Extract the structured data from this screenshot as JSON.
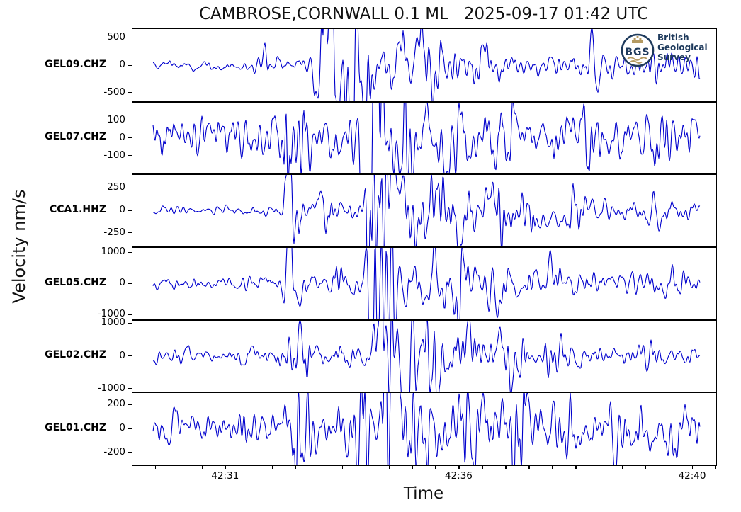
{
  "title": "CAMBROSE,CORNWALL 0.1 ML   2025-09-17 01:42 UTC",
  "ylabel": "Velocity nm/s",
  "xlabel": "Time",
  "logo": {
    "abbr": "BGS",
    "org_lines": [
      "British",
      "Geological",
      "Survey"
    ],
    "navy": "#1e3a5c",
    "gold": "#b49a62"
  },
  "chart_data": {
    "type": "line",
    "title": "CAMBROSE,CORNWALL 0.1 ML   2025-09-17 01:42 UTC",
    "xlabel": "Time",
    "ylabel": "Velocity nm/s",
    "line_color": "#0000cd",
    "grid": false,
    "x_axis": {
      "minor_tick_count": 26,
      "labels": [
        {
          "text": "42:31",
          "tick_index": 4
        },
        {
          "text": "42:36",
          "tick_index": 14
        },
        {
          "text": "42:40",
          "tick_index": 24
        }
      ]
    },
    "trace_range": {
      "start": 0.035,
      "end": 0.972
    },
    "channels": [
      {
        "name": "GEL09.CHZ",
        "ylim": [
          -650,
          650
        ],
        "yticks": [
          500,
          0,
          -500
        ],
        "seed": 11,
        "noise": [
          [
            0,
            45
          ],
          [
            0.15,
            55
          ],
          [
            0.25,
            75
          ],
          [
            0.33,
            100
          ],
          [
            0.4,
            140
          ],
          [
            0.5,
            160
          ],
          [
            0.6,
            140
          ],
          [
            0.75,
            110
          ],
          [
            0.9,
            115
          ],
          [
            1,
            120
          ]
        ],
        "bursts": [
          [
            0.23,
            10,
            160
          ],
          [
            0.33,
            8,
            1200
          ],
          [
            0.347,
            5,
            900
          ],
          [
            0.375,
            7,
            1150
          ],
          [
            0.4,
            8,
            500
          ],
          [
            0.455,
            8,
            280
          ],
          [
            0.497,
            12,
            520
          ],
          [
            0.53,
            8,
            280
          ],
          [
            0.6,
            10,
            180
          ],
          [
            0.79,
            8,
            150
          ],
          [
            0.9,
            12,
            160
          ],
          [
            0.965,
            8,
            190
          ]
        ]
      },
      {
        "name": "GEL07.CHZ",
        "ylim": [
          -200,
          200
        ],
        "yticks": [
          100,
          0,
          -100
        ],
        "seed": 22,
        "noise": [
          [
            0,
            60
          ],
          [
            0.2,
            70
          ],
          [
            0.35,
            80
          ],
          [
            0.5,
            95
          ],
          [
            0.7,
            85
          ],
          [
            1,
            75
          ]
        ],
        "bursts": [
          [
            0.262,
            6,
            200
          ],
          [
            0.285,
            8,
            120
          ],
          [
            0.4,
            7,
            300
          ],
          [
            0.415,
            6,
            340
          ],
          [
            0.43,
            6,
            240
          ],
          [
            0.47,
            10,
            120
          ],
          [
            0.55,
            12,
            80
          ],
          [
            0.64,
            10,
            90
          ],
          [
            0.78,
            10,
            80
          ],
          [
            0.9,
            8,
            90
          ]
        ]
      },
      {
        "name": "CCA1.HHZ",
        "ylim": [
          -400,
          400
        ],
        "yticks": [
          250,
          0,
          -250
        ],
        "seed": 33,
        "noise": [
          [
            0,
            25
          ],
          [
            0.2,
            32
          ],
          [
            0.3,
            45
          ],
          [
            0.42,
            60
          ],
          [
            0.52,
            120
          ],
          [
            0.7,
            90
          ],
          [
            0.85,
            70
          ],
          [
            1,
            60
          ]
        ],
        "bursts": [
          [
            0.268,
            4,
            700
          ],
          [
            0.283,
            6,
            240
          ],
          [
            0.33,
            8,
            120
          ],
          [
            0.405,
            5,
            760
          ],
          [
            0.42,
            6,
            700
          ],
          [
            0.44,
            8,
            360
          ],
          [
            0.475,
            10,
            260
          ],
          [
            0.52,
            10,
            240
          ],
          [
            0.565,
            10,
            220
          ],
          [
            0.63,
            10,
            200
          ],
          [
            0.685,
            8,
            180
          ],
          [
            0.76,
            8,
            100
          ],
          [
            0.9,
            10,
            80
          ]
        ]
      },
      {
        "name": "GEL05.CHZ",
        "ylim": [
          -1150,
          1150
        ],
        "yticks": [
          1000,
          0,
          -1000
        ],
        "seed": 44,
        "noise": [
          [
            0,
            110
          ],
          [
            0.2,
            130
          ],
          [
            0.3,
            160
          ],
          [
            0.45,
            240
          ],
          [
            0.6,
            300
          ],
          [
            0.75,
            220
          ],
          [
            1,
            180
          ]
        ],
        "bursts": [
          [
            0.268,
            4,
            1650
          ],
          [
            0.285,
            6,
            520
          ],
          [
            0.35,
            8,
            300
          ],
          [
            0.41,
            6,
            2000
          ],
          [
            0.425,
            6,
            2300
          ],
          [
            0.445,
            8,
            1400
          ],
          [
            0.48,
            10,
            840
          ],
          [
            0.52,
            10,
            760
          ],
          [
            0.565,
            8,
            700
          ],
          [
            0.62,
            8,
            600
          ],
          [
            0.72,
            10,
            280
          ],
          [
            0.93,
            10,
            240
          ]
        ]
      },
      {
        "name": "GEL02.CHZ",
        "ylim": [
          -1080,
          1080
        ],
        "yticks": [
          1000,
          0,
          -1000
        ],
        "seed": 55,
        "noise": [
          [
            0,
            130
          ],
          [
            0.15,
            150
          ],
          [
            0.3,
            170
          ],
          [
            0.5,
            240
          ],
          [
            0.65,
            260
          ],
          [
            0.8,
            180
          ],
          [
            1,
            160
          ]
        ],
        "bursts": [
          [
            0.275,
            10,
            400
          ],
          [
            0.295,
            8,
            300
          ],
          [
            0.425,
            5,
            1900
          ],
          [
            0.44,
            7,
            1500
          ],
          [
            0.47,
            10,
            840
          ],
          [
            0.515,
            12,
            760
          ],
          [
            0.575,
            12,
            600
          ],
          [
            0.645,
            12,
            440
          ],
          [
            0.73,
            10,
            240
          ],
          [
            0.88,
            10,
            180
          ]
        ]
      },
      {
        "name": "GEL01.CHZ",
        "ylim": [
          -300,
          300
        ],
        "yticks": [
          200,
          0,
          -200
        ],
        "seed": 66,
        "noise": [
          [
            0,
            70
          ],
          [
            0.15,
            90
          ],
          [
            0.3,
            100
          ],
          [
            0.5,
            140
          ],
          [
            0.7,
            130
          ],
          [
            0.85,
            110
          ],
          [
            1,
            100
          ]
        ],
        "bursts": [
          [
            0.28,
            4,
            480
          ],
          [
            0.3,
            6,
            140
          ],
          [
            0.4,
            8,
            220
          ],
          [
            0.432,
            4,
            580
          ],
          [
            0.45,
            8,
            300
          ],
          [
            0.5,
            12,
            180
          ],
          [
            0.58,
            14,
            200
          ],
          [
            0.66,
            12,
            220
          ],
          [
            0.74,
            12,
            180
          ],
          [
            0.84,
            12,
            140
          ],
          [
            0.94,
            10,
            120
          ]
        ]
      }
    ]
  }
}
